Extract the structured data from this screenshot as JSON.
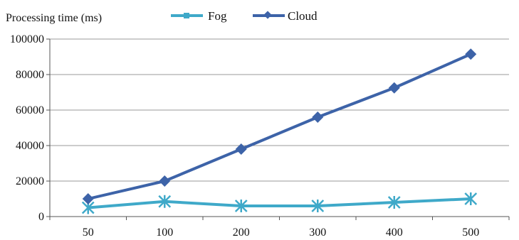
{
  "chart_data": {
    "type": "line",
    "ylabel": "Processing time (ms)",
    "xlabel": "",
    "categories": [
      "50",
      "100",
      "200",
      "300",
      "400",
      "500"
    ],
    "ylim": [
      0,
      100000
    ],
    "yticks": [
      "0",
      "20000",
      "40000",
      "60000",
      "80000",
      "100000"
    ],
    "grid": true,
    "legend_position": "top-center",
    "series": [
      {
        "name": "Fog",
        "color": "#3fa9c9",
        "marker": "x-star",
        "values": [
          5000,
          8500,
          6000,
          6000,
          8000,
          10000
        ]
      },
      {
        "name": "Cloud",
        "color": "#3d63a8",
        "marker": "diamond",
        "values": [
          10000,
          20000,
          38000,
          56000,
          72500,
          91500
        ]
      }
    ]
  }
}
